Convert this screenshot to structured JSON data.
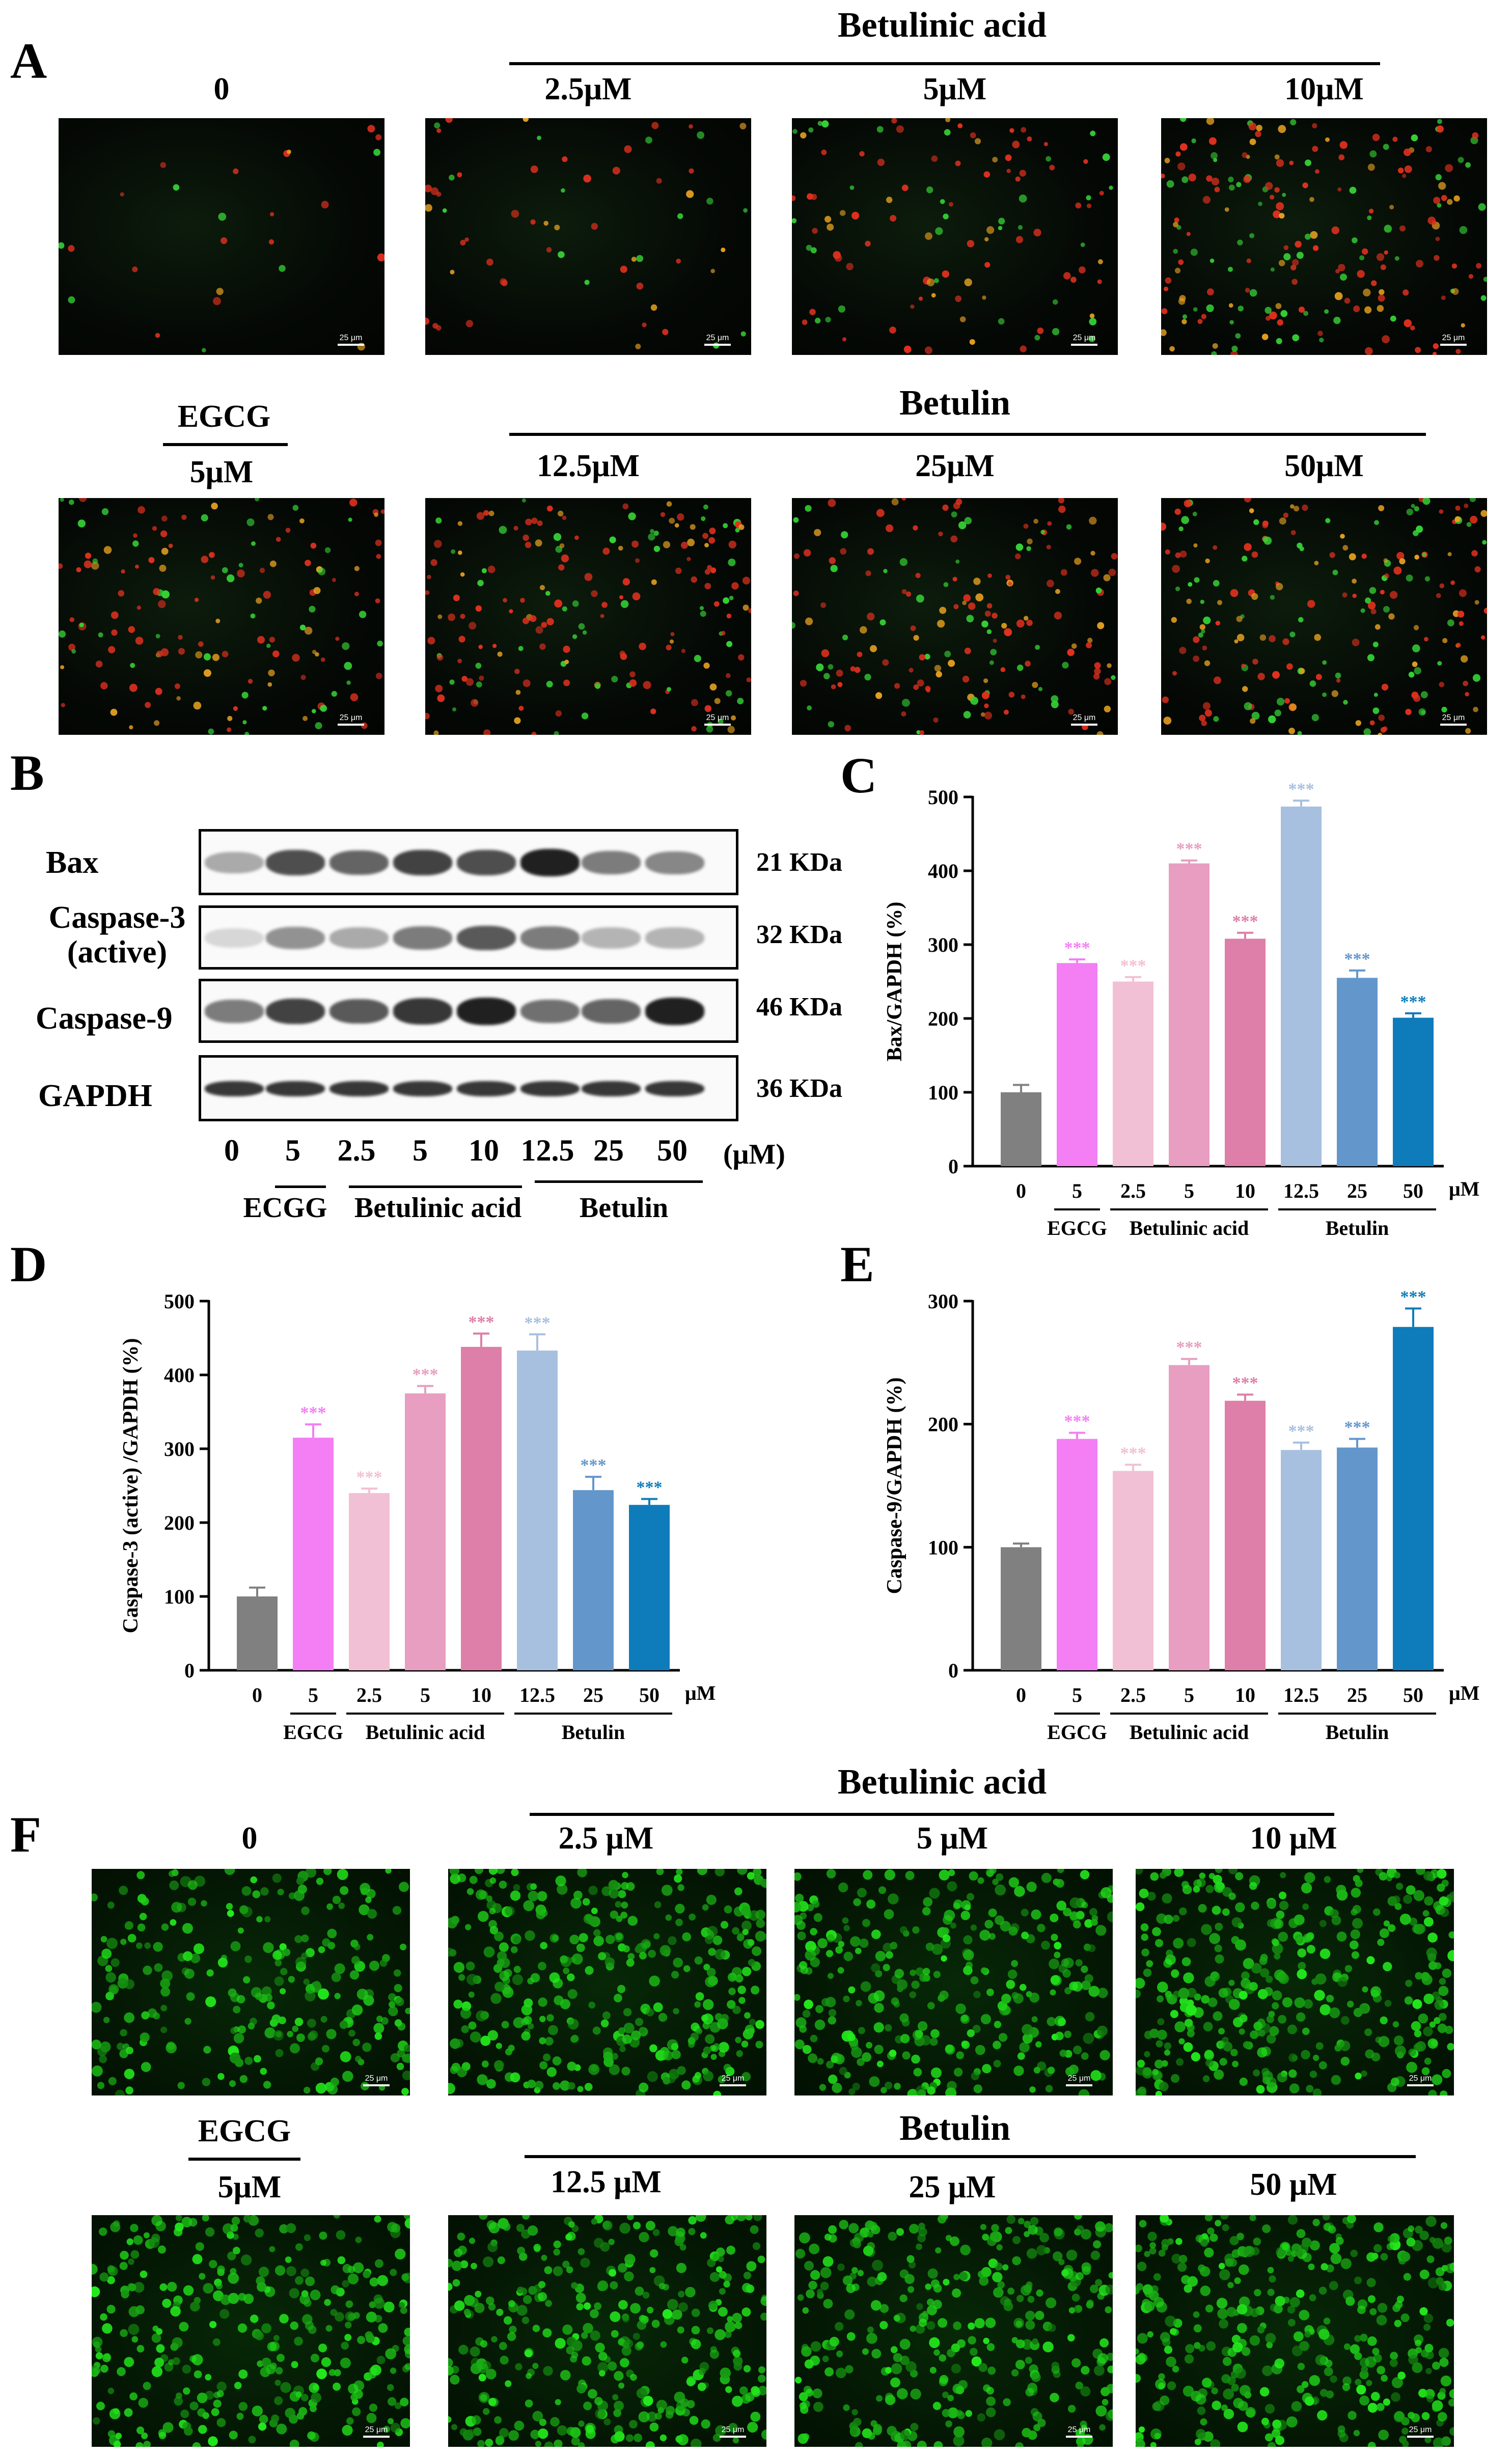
{
  "panels": {
    "A": "A",
    "B": "B",
    "C": "C",
    "D": "D",
    "E": "E",
    "F": "F"
  },
  "panel_A": {
    "top_group_label": "Betulinic acid",
    "top_labels": [
      "0",
      "2.5μM",
      "5μM",
      "10μM"
    ],
    "bottom_group_label_left": "EGCG",
    "bottom_group_label": "Betulin",
    "bottom_labels": [
      "5μM",
      "12.5μM",
      "25μM",
      "50μM"
    ],
    "scale_bar": "25 μm"
  },
  "panel_F": {
    "top_group_label": "Betulinic acid",
    "top_labels": [
      "0",
      "2.5 μM",
      "5 μM",
      "10 μM"
    ],
    "bottom_group_label_left": "EGCG",
    "bottom_group_label": "Betulin",
    "bottom_labels": [
      "5μM",
      "12.5 μM",
      "25 μM",
      "50 μM"
    ],
    "scale_bar": "25 μm"
  },
  "panel_B": {
    "proteins": [
      "Bax",
      "Caspase-3\n(active)",
      "Caspase-9",
      "GAPDH"
    ],
    "kda": [
      "21 KDa",
      "32 KDa",
      "46 KDa",
      "36 KDa"
    ],
    "lanes": [
      "0",
      "5",
      "2.5",
      "5",
      "10",
      "12.5",
      "25",
      "50"
    ],
    "unit": "(μM)",
    "groups": [
      "ECGG",
      "Betulinic acid",
      "Betulin"
    ]
  },
  "chart_data": [
    {
      "panel": "C",
      "type": "bar",
      "categories": [
        "0",
        "5",
        "2.5",
        "5",
        "10",
        "12.5",
        "25",
        "50"
      ],
      "values": [
        100,
        275,
        250,
        410,
        308,
        487,
        255,
        201
      ],
      "errors": [
        10,
        5,
        6,
        4,
        8,
        8,
        10,
        6
      ],
      "significance": [
        "",
        "***",
        "***",
        "***",
        "***",
        "***",
        "***",
        "***"
      ],
      "colors": [
        "#808080",
        "#f47ef4",
        "#f2c0d4",
        "#e89ec0",
        "#dd7fa8",
        "#a7c0e0",
        "#6397cc",
        "#0e7cba"
      ],
      "ylabel": "Bax/GAPDH (%)",
      "ylim": [
        0,
        500
      ],
      "yticks": [
        0,
        100,
        200,
        300,
        400,
        500
      ],
      "unit": "μM",
      "groups": [
        "EGCG",
        "Betulinic acid",
        "Betulin"
      ]
    },
    {
      "panel": "D",
      "type": "bar",
      "categories": [
        "0",
        "5",
        "2.5",
        "5",
        "10",
        "12.5",
        "25",
        "50"
      ],
      "values": [
        100,
        315,
        240,
        375,
        438,
        433,
        244,
        224
      ],
      "errors": [
        12,
        18,
        6,
        10,
        18,
        22,
        18,
        8
      ],
      "significance": [
        "",
        "***",
        "***",
        "***",
        "***",
        "***",
        "***",
        "***"
      ],
      "colors": [
        "#808080",
        "#f47ef4",
        "#f2c0d4",
        "#e89ec0",
        "#dd7fa8",
        "#a7c0e0",
        "#6397cc",
        "#0e7cba"
      ],
      "ylabel": "Caspase-3 (active) /GAPDH (%)",
      "ylim": [
        0,
        500
      ],
      "yticks": [
        0,
        100,
        200,
        300,
        400,
        500
      ],
      "unit": "μM",
      "groups": [
        "EGCG",
        "Betulinic acid",
        "Betulin"
      ]
    },
    {
      "panel": "E",
      "type": "bar",
      "categories": [
        "0",
        "5",
        "2.5",
        "5",
        "10",
        "12.5",
        "25",
        "50"
      ],
      "values": [
        100,
        188,
        162,
        248,
        219,
        179,
        181,
        279
      ],
      "errors": [
        3,
        5,
        5,
        5,
        5,
        6,
        7,
        15
      ],
      "significance": [
        "",
        "***",
        "***",
        "***",
        "***",
        "***",
        "***",
        "***"
      ],
      "colors": [
        "#808080",
        "#f47ef4",
        "#f2c0d4",
        "#e89ec0",
        "#dd7fa8",
        "#a7c0e0",
        "#6397cc",
        "#0e7cba"
      ],
      "ylabel": "Caspase-9/GAPDH (%)",
      "ylim": [
        0,
        300
      ],
      "yticks": [
        0,
        100,
        200,
        300
      ],
      "unit": "μM",
      "groups": [
        "EGCG",
        "Betulinic acid",
        "Betulin"
      ]
    }
  ]
}
